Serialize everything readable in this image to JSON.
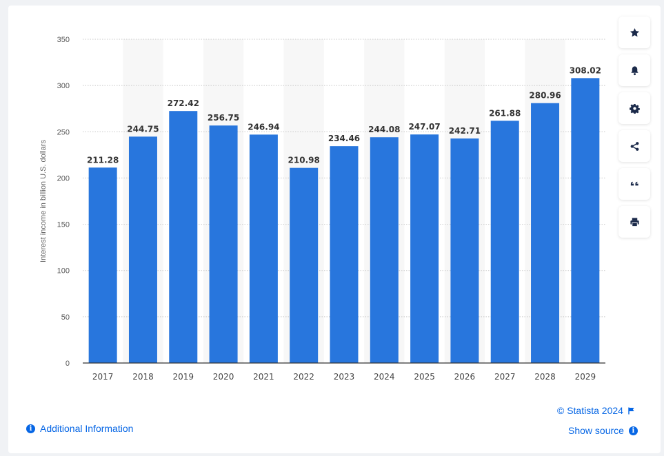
{
  "chart_data": {
    "type": "bar",
    "categories": [
      "2017",
      "2018",
      "2019",
      "2020",
      "2021",
      "2022",
      "2023",
      "2024",
      "2025",
      "2026",
      "2027",
      "2028",
      "2029"
    ],
    "values": [
      211.28,
      244.75,
      272.42,
      256.75,
      246.94,
      210.98,
      234.46,
      244.08,
      247.07,
      242.71,
      261.88,
      280.96,
      308.02
    ],
    "value_labels": [
      "211.28",
      "244.75",
      "272.42",
      "256.75",
      "246.94",
      "210.98",
      "234.46",
      "244.08",
      "247.07",
      "242.71",
      "261.88",
      "280.96",
      "308.02"
    ],
    "ylabel": "Interest income in billion U.S. dollars",
    "xlabel": "",
    "ylim": [
      0,
      350
    ],
    "yticks": [
      "0",
      "50",
      "100",
      "150",
      "200",
      "250",
      "300",
      "350"
    ],
    "grid": true,
    "bar_color": "#2876dd"
  },
  "sidebar": {
    "buttons": [
      {
        "name": "star-icon"
      },
      {
        "name": "bell-icon"
      },
      {
        "name": "gear-icon"
      },
      {
        "name": "share-icon"
      },
      {
        "name": "quote-icon"
      },
      {
        "name": "print-icon"
      }
    ]
  },
  "footer": {
    "additional_info": "Additional Information",
    "copyright": "© Statista 2024",
    "show_source": "Show source"
  },
  "colors": {
    "accent": "#0666e5",
    "bar": "#2876dd",
    "band": "#f7f7f7"
  }
}
